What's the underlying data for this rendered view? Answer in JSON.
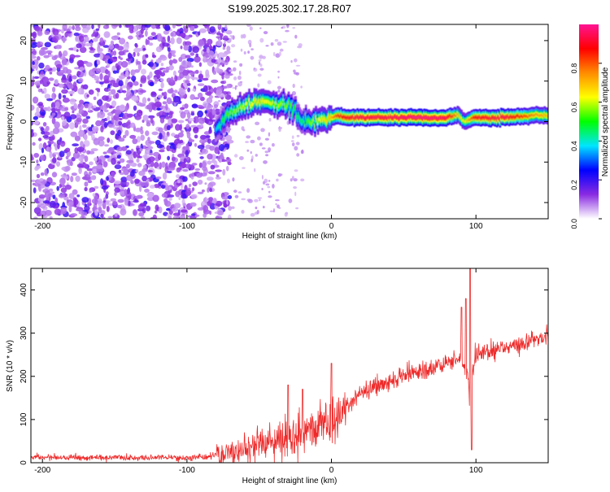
{
  "title": "S199.2025.302.17.28.R07",
  "chart_data": [
    {
      "type": "heatmap",
      "title": "S199.2025.302.17.28.R07",
      "xlabel": "Height of straight line (km)",
      "ylabel": "Frequency (Hz)",
      "xlim": [
        -208,
        150
      ],
      "ylim": [
        -24,
        24
      ],
      "x_ticks": [
        -200,
        -100,
        0,
        100
      ],
      "x_tick_labels": [
        "-200",
        "-100",
        "0",
        "100"
      ],
      "y_ticks": [
        -20,
        -10,
        0,
        10,
        20
      ],
      "y_tick_labels": [
        "-20",
        "-10",
        "0",
        "10",
        "20"
      ],
      "grid": false,
      "colorbar": {
        "label": "Normalized spectral amplitude",
        "range": [
          0,
          1
        ],
        "ticks": [
          0.0,
          0.2,
          0.4,
          0.6,
          0.8
        ],
        "tick_labels": [
          "0.0",
          "0.2",
          "0.4",
          "0.6",
          "0.8"
        ],
        "colors": [
          "#ffffff",
          "#8a2be2",
          "#0000ff",
          "#00e5ff",
          "#00ff00",
          "#ffff00",
          "#ff8c00",
          "#ff0000",
          "#ff1493"
        ]
      },
      "ridge": {
        "description": "dominant frequency track",
        "x": [
          -80,
          -75,
          -70,
          -60,
          -50,
          -40,
          -30,
          -25,
          -20,
          -15,
          -10,
          0,
          5,
          10,
          20,
          40,
          60,
          80,
          88,
          92,
          100,
          120,
          140,
          150
        ],
        "freq": [
          -2.5,
          0,
          2,
          4,
          5,
          4.5,
          4,
          2.5,
          0,
          0,
          0,
          1,
          1.5,
          1,
          1,
          1,
          1,
          1,
          1.5,
          0,
          1,
          1,
          1.5,
          1.5
        ],
        "amplitude": [
          0.35,
          0.5,
          0.55,
          0.6,
          0.65,
          0.6,
          0.55,
          0.5,
          0.45,
          0.55,
          0.6,
          0.7,
          0.85,
          0.9,
          0.95,
          0.95,
          1.0,
          0.95,
          0.7,
          0.6,
          0.9,
          0.95,
          0.75,
          0.7
        ]
      },
      "noise_region": {
        "x_from": -208,
        "x_to": -75,
        "amplitude": "0.0-0.2"
      }
    },
    {
      "type": "line",
      "xlabel": "Height of straight line (km)",
      "ylabel": "SNR (10 * v/v)",
      "xlim": [
        -208,
        150
      ],
      "ylim": [
        0,
        450
      ],
      "x_ticks": [
        -200,
        -100,
        0,
        100
      ],
      "x_tick_labels": [
        "-200",
        "-100",
        "0",
        "100"
      ],
      "y_ticks": [
        0,
        100,
        200,
        300,
        400
      ],
      "y_tick_labels": [
        "0",
        "100",
        "200",
        "300",
        "400"
      ],
      "grid": false,
      "series": [
        {
          "name": "SNR",
          "color": "#ee2a2a",
          "trend_x": [
            -208,
            -150,
            -100,
            -80,
            -60,
            -40,
            -20,
            0,
            10,
            20,
            40,
            60,
            80,
            90,
            95,
            96,
            97,
            100,
            120,
            140,
            150
          ],
          "trend_y": [
            12,
            12,
            12,
            15,
            30,
            50,
            70,
            100,
            130,
            160,
            190,
            210,
            230,
            240,
            200,
            60,
            200,
            250,
            265,
            285,
            290
          ],
          "spikes": [
            {
              "x": 96,
              "y": 450
            },
            {
              "x": 97,
              "y": 30
            },
            {
              "x": 93,
              "y": 380
            },
            {
              "x": 90,
              "y": 360
            },
            {
              "x": -30,
              "y": 180
            },
            {
              "x": -20,
              "y": 170
            },
            {
              "x": 0,
              "y": 230
            }
          ]
        }
      ]
    }
  ]
}
